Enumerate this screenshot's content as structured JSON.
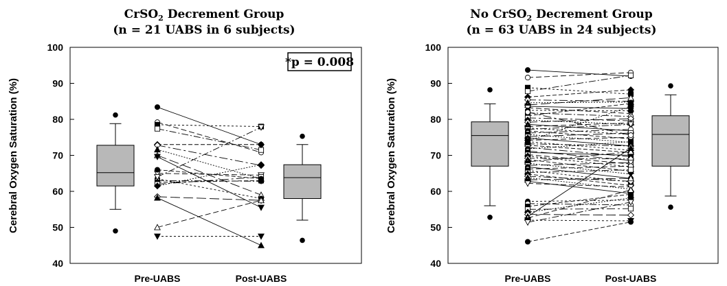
{
  "chart_data": [
    {
      "type": "box-and-paired-lines",
      "title_pre": "CrSO",
      "title_sub": "2",
      "title_post": " Decrement Group",
      "subtitle": "(n = 21 UABS in 6 subjects)",
      "ylabel": "Cerebral Oxygen Saturation (%)",
      "ylim": [
        40,
        100
      ],
      "yticks": [
        40,
        50,
        60,
        70,
        80,
        90,
        100
      ],
      "categories": [
        "Pre-UABS",
        "Post-UABS"
      ],
      "annotation": "*p = 0.008",
      "boxes": [
        {
          "name": "Pre-UABS",
          "q1": 61.5,
          "median": 65.2,
          "q3": 72.8,
          "whisker_low": 55.0,
          "whisker_high": 78.8,
          "outliers": [
            49.0,
            81.2
          ]
        },
        {
          "name": "Post-UABS",
          "q1": 58.0,
          "median": 63.8,
          "q3": 67.4,
          "whisker_low": 52.0,
          "whisker_high": 73.0,
          "outliers": [
            46.4,
            75.3
          ]
        }
      ],
      "pairs": [
        [
          83.4,
          73.0
        ],
        [
          79.2,
          70.8
        ],
        [
          78.5,
          78.0
        ],
        [
          77.4,
          71.5
        ],
        [
          73.0,
          73.0
        ],
        [
          72.8,
          67.2
        ],
        [
          71.6,
          63.5
        ],
        [
          70.0,
          59.0
        ],
        [
          69.6,
          55.5
        ],
        [
          65.0,
          64.5
        ],
        [
          63.5,
          58.0
        ],
        [
          63.0,
          62.8
        ],
        [
          62.5,
          63.0
        ],
        [
          62.0,
          64.0
        ],
        [
          61.5,
          67.4
        ],
        [
          58.5,
          57.5
        ],
        [
          58.2,
          45.0
        ],
        [
          50.0,
          57.5
        ],
        [
          47.5,
          47.5
        ],
        [
          64.0,
          77.8
        ],
        [
          66.0,
          63.5
        ]
      ]
    },
    {
      "type": "box-and-paired-lines",
      "title_pre": "No CrSO",
      "title_sub": "2",
      "title_post": " Decrement Group",
      "subtitle": "(n = 63 UABS in 24 subjects)",
      "ylabel": "Cerebral Oxygen Saturation (%)",
      "ylim": [
        40,
        100
      ],
      "yticks": [
        40,
        50,
        60,
        70,
        80,
        90,
        100
      ],
      "categories": [
        "Pre-UABS",
        "Post-UABS"
      ],
      "annotation": "",
      "boxes": [
        {
          "name": "Pre-UABS",
          "q1": 67.0,
          "median": 75.5,
          "q3": 79.3,
          "whisker_low": 56.0,
          "whisker_high": 84.3,
          "outliers": [
            52.8,
            88.2
          ]
        },
        {
          "name": "Post-UABS",
          "q1": 67.0,
          "median": 75.8,
          "q3": 81.0,
          "whisker_low": 58.7,
          "whisker_high": 86.8,
          "outliers": [
            55.6,
            89.3
          ]
        }
      ],
      "pairs": [
        [
          93.7,
          92.0
        ],
        [
          91.6,
          93.0
        ],
        [
          88.8,
          87.0
        ],
        [
          87.8,
          92.2
        ],
        [
          86.2,
          88.2
        ],
        [
          85.4,
          85.0
        ],
        [
          84.6,
          84.8
        ],
        [
          84.0,
          86.0
        ],
        [
          83.6,
          83.0
        ],
        [
          83.2,
          81.6
        ],
        [
          82.5,
          82.4
        ],
        [
          81.8,
          80.8
        ],
        [
          81.0,
          84.4
        ],
        [
          80.4,
          79.6
        ],
        [
          79.8,
          78.6
        ],
        [
          79.2,
          80.2
        ],
        [
          78.6,
          76.8
        ],
        [
          78.0,
          79.0
        ],
        [
          77.6,
          75.8
        ],
        [
          77.2,
          78.6
        ],
        [
          76.8,
          74.6
        ],
        [
          76.2,
          77.2
        ],
        [
          75.8,
          73.6
        ],
        [
          75.2,
          76.2
        ],
        [
          74.8,
          72.6
        ],
        [
          74.2,
          75.0
        ],
        [
          73.8,
          71.4
        ],
        [
          73.2,
          72.6
        ],
        [
          72.8,
          70.8
        ],
        [
          72.2,
          69.6
        ],
        [
          71.8,
          73.8
        ],
        [
          71.2,
          68.6
        ],
        [
          70.8,
          70.0
        ],
        [
          70.2,
          67.6
        ],
        [
          69.8,
          66.8
        ],
        [
          69.2,
          69.0
        ],
        [
          68.8,
          65.6
        ],
        [
          68.2,
          71.0
        ],
        [
          67.8,
          64.8
        ],
        [
          67.2,
          68.0
        ],
        [
          66.8,
          63.6
        ],
        [
          66.2,
          67.0
        ],
        [
          65.8,
          62.6
        ],
        [
          65.2,
          66.0
        ],
        [
          64.8,
          61.6
        ],
        [
          64.2,
          62.8
        ],
        [
          63.8,
          60.6
        ],
        [
          63.2,
          63.6
        ],
        [
          62.8,
          59.4
        ],
        [
          62.2,
          61.2
        ],
        [
          57.2,
          57.6
        ],
        [
          56.6,
          56.2
        ],
        [
          55.8,
          59.2
        ],
        [
          55.0,
          55.2
        ],
        [
          54.2,
          58.2
        ],
        [
          53.6,
          53.4
        ],
        [
          53.0,
          72.0
        ],
        [
          52.6,
          60.4
        ],
        [
          52.0,
          51.8
        ],
        [
          51.4,
          57.0
        ],
        [
          46.0,
          51.5
        ],
        [
          82.0,
          75.6
        ],
        [
          74.0,
          83.6
        ]
      ]
    }
  ]
}
